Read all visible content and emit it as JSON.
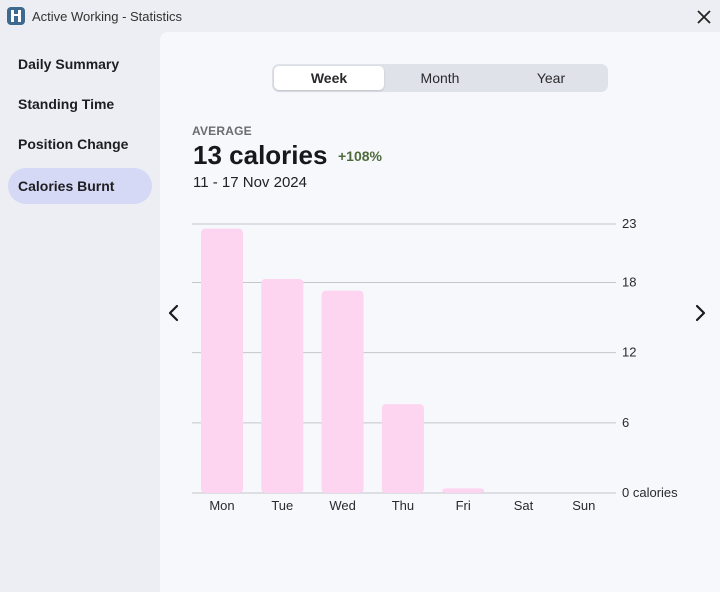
{
  "window": {
    "title": "Active Working - Statistics"
  },
  "sidebar": {
    "items": [
      {
        "label": "Daily Summary",
        "active": false
      },
      {
        "label": "Standing Time",
        "active": false
      },
      {
        "label": "Position Change",
        "active": false
      },
      {
        "label": "Calories Burnt",
        "active": true
      }
    ]
  },
  "period_selector": {
    "options": [
      "Week",
      "Month",
      "Year"
    ],
    "selected": "Week"
  },
  "summary": {
    "average_label": "AVERAGE",
    "average_value": "13 calories",
    "change": "+108%",
    "date_range": "11 - 17 Nov 2024"
  },
  "colors": {
    "bar": "#fdd5f1",
    "accent_sidebar": "#d6d9f6",
    "change_text": "#4f6a3a"
  },
  "chart_data": {
    "type": "bar",
    "categories": [
      "Mon",
      "Tue",
      "Wed",
      "Thu",
      "Fri",
      "Sat",
      "Sun"
    ],
    "values": [
      22.6,
      18.3,
      17.3,
      7.6,
      0.4,
      0,
      0
    ],
    "y_ticks": [
      {
        "value": 0,
        "label": "0 calories"
      },
      {
        "value": 6,
        "label": "6"
      },
      {
        "value": 12,
        "label": "12"
      },
      {
        "value": 18,
        "label": "18"
      },
      {
        "value": 23,
        "label": "23"
      }
    ],
    "ylim": [
      0,
      23
    ],
    "grid": true,
    "y_axis_position": "right"
  }
}
